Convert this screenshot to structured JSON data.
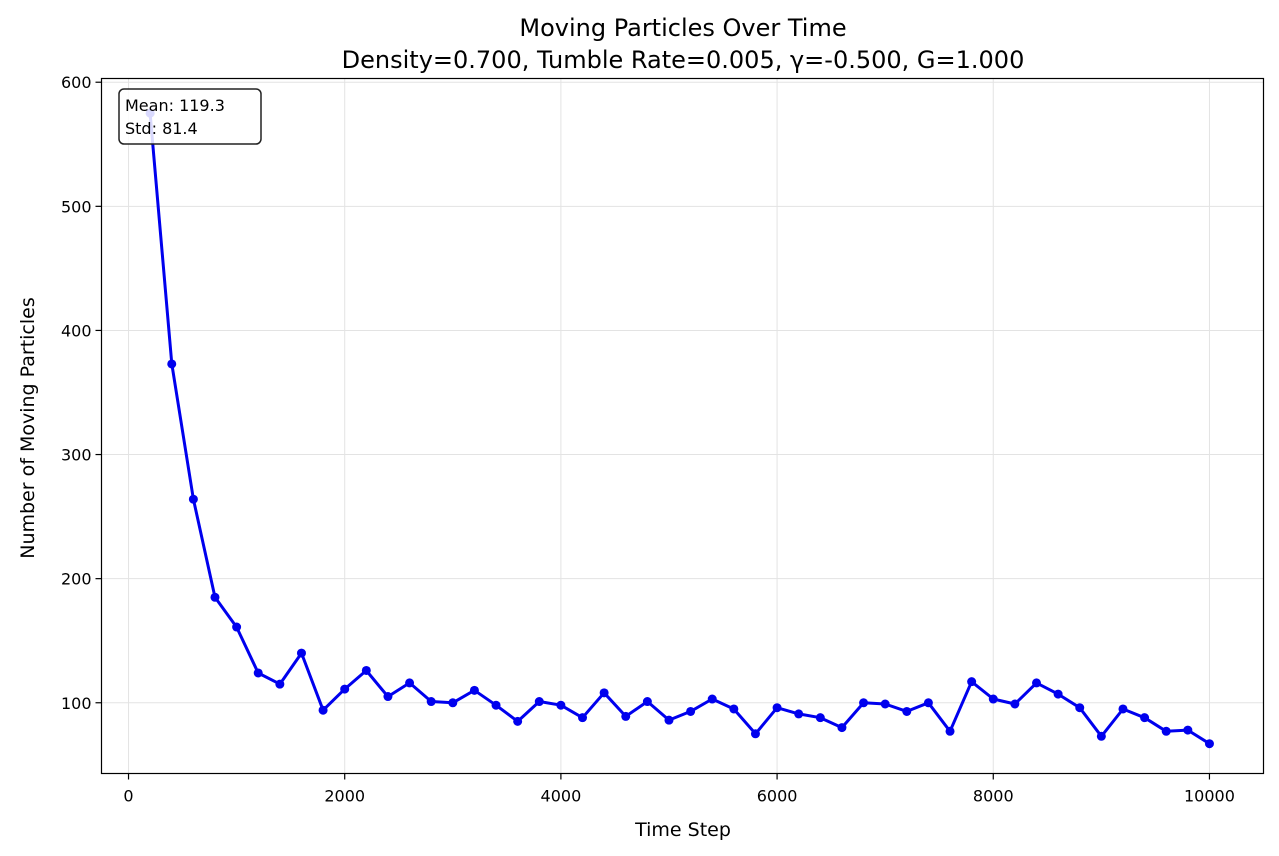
{
  "chart_data": {
    "type": "line",
    "title_line1": "Moving Particles Over Time",
    "title_line2": "Density=0.700, Tumble Rate=0.005, γ=-0.500, G=1.000",
    "xlabel": "Time Step",
    "ylabel": "Number of Moving Particles",
    "xlim": [
      -250,
      10500
    ],
    "ylim": [
      43,
      603
    ],
    "xticks": [
      0,
      2000,
      4000,
      6000,
      8000,
      10000
    ],
    "xtick_labels": [
      "0",
      "2000",
      "4000",
      "6000",
      "8000",
      "10000"
    ],
    "yticks": [
      100,
      200,
      300,
      400,
      500,
      600
    ],
    "ytick_labels": [
      "100",
      "200",
      "300",
      "400",
      "500",
      "600"
    ],
    "grid": true,
    "line_color": "#0000ee",
    "stats": {
      "mean_label": "Mean: 119.3",
      "std_label": "Std: 81.4"
    },
    "series": [
      {
        "x": [
          200,
          400,
          600,
          800,
          1000,
          1200,
          1400,
          1600,
          1800,
          2000,
          2200,
          2400,
          2600,
          2800,
          3000,
          3200,
          3400,
          3600,
          3800,
          4000,
          4200,
          4400,
          4600,
          4800,
          5000,
          5200,
          5400,
          5600,
          5800,
          6000,
          6200,
          6400,
          6600,
          6800,
          7000,
          7200,
          7400,
          7600,
          7800,
          8000,
          8200,
          8400,
          8600,
          8800,
          9000,
          9200,
          9400,
          9600,
          9800,
          10000
        ],
        "values": [
          575,
          373,
          264,
          185,
          161,
          124,
          115,
          140,
          94,
          111,
          126,
          105,
          116,
          101,
          100,
          110,
          98,
          85,
          101,
          98,
          88,
          108,
          89,
          101,
          86,
          93,
          103,
          95,
          75,
          96,
          91,
          88,
          80,
          100,
          99,
          93,
          100,
          77,
          117,
          103,
          99,
          116,
          107,
          96,
          73,
          95,
          88,
          77,
          78,
          67
        ]
      }
    ]
  }
}
